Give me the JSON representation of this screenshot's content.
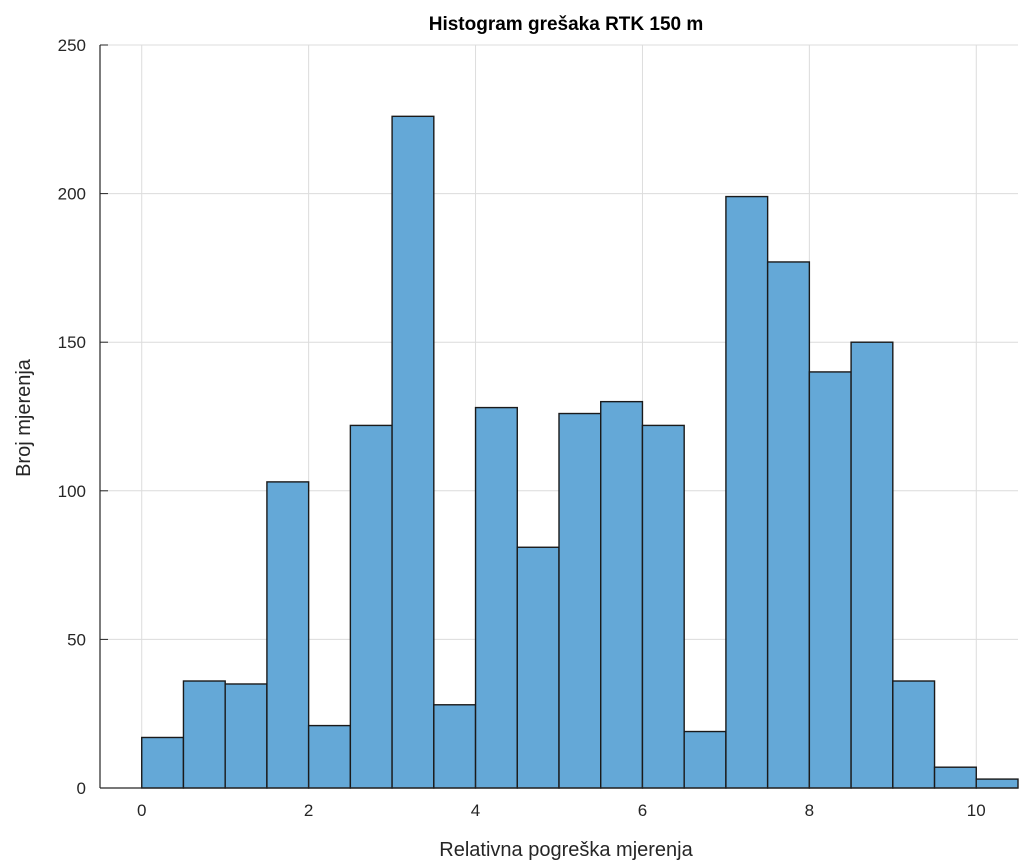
{
  "chart_data": {
    "type": "bar",
    "title": "Histogram grešaka RTK 150 m",
    "xlabel": "Relativna pogreška mjerenja",
    "ylabel": "Broj mjerenja",
    "xlim": [
      -0.5,
      10.5
    ],
    "ylim": [
      0,
      250
    ],
    "xticks": [
      0,
      2,
      4,
      6,
      8,
      10
    ],
    "yticks": [
      0,
      50,
      100,
      150,
      200,
      250
    ],
    "bin_width": 0.5,
    "bin_edges": [
      0,
      0.5,
      1,
      1.5,
      2,
      2.5,
      3,
      3.5,
      4,
      4.5,
      5,
      5.5,
      6,
      6.5,
      7,
      7.5,
      8,
      8.5,
      9,
      9.5,
      10,
      10.5
    ],
    "values": [
      17,
      36,
      35,
      103,
      21,
      122,
      226,
      28,
      128,
      81,
      126,
      130,
      122,
      19,
      199,
      177,
      140,
      150,
      36,
      7,
      3
    ],
    "grid": true,
    "bar_color": "#64a8d7",
    "edge_color": "#1a1a1a"
  }
}
